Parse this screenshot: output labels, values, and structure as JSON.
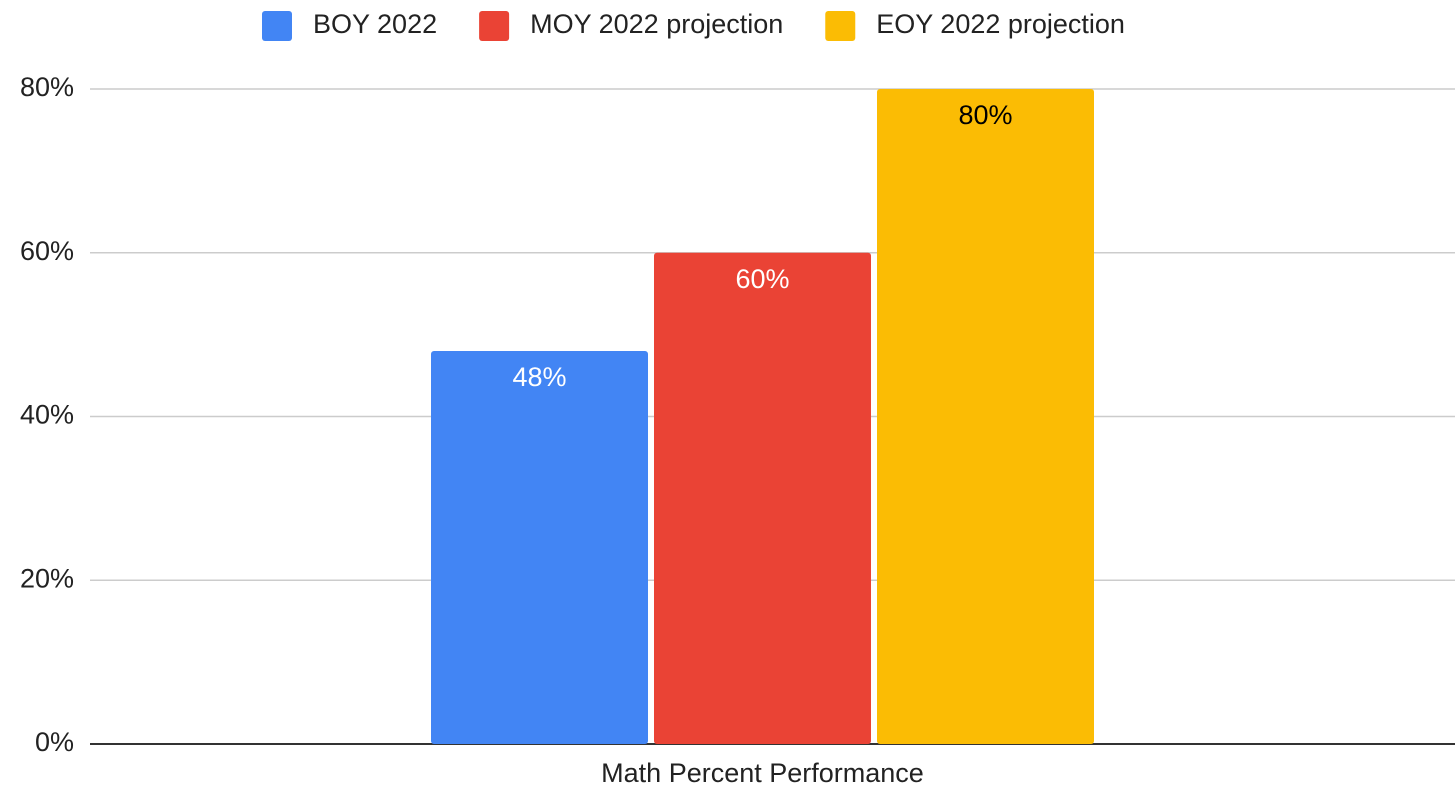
{
  "chart_data": {
    "type": "bar",
    "categories": [
      "Math Percent Performance"
    ],
    "series": [
      {
        "name": "BOY 2022",
        "color": "#4285f4",
        "label_color": "#ffffff",
        "values": [
          48
        ],
        "value_labels": [
          "48%"
        ]
      },
      {
        "name": "MOY 2022 projection",
        "color": "#ea4335",
        "label_color": "#ffffff",
        "values": [
          60
        ],
        "value_labels": [
          "60%"
        ]
      },
      {
        "name": "EOY 2022 projection",
        "color": "#fbbc04",
        "label_color": "#000000",
        "values": [
          80
        ],
        "value_labels": [
          "80%"
        ]
      }
    ],
    "ylim": [
      0,
      80
    ],
    "yticks": [
      {
        "value": 0,
        "label": "0%"
      },
      {
        "value": 20,
        "label": "20%"
      },
      {
        "value": 40,
        "label": "40%"
      },
      {
        "value": 60,
        "label": "60%"
      },
      {
        "value": 80,
        "label": "80%"
      }
    ],
    "grid": true,
    "legend": "top"
  }
}
